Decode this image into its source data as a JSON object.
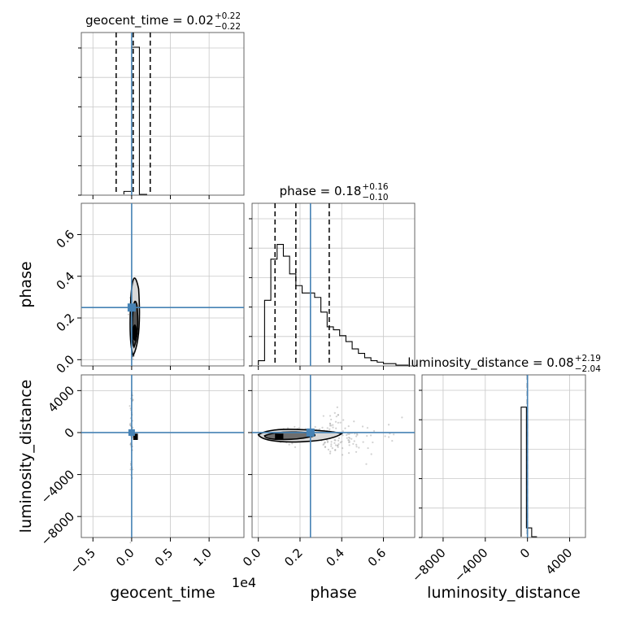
{
  "chart_data": {
    "type": "corner",
    "colors": {
      "truth": "#4682b4",
      "contour": "#000000",
      "grid": "#c8c8c8",
      "frame": "#555555",
      "scatter": "#9a9a9a"
    },
    "parameters": [
      {
        "name": "geocent_time",
        "xlabel": "geocent_time",
        "axis_offset": "1e4",
        "range": [
          -0.65,
          1.45
        ],
        "ticks": [
          -0.5,
          0.0,
          0.5,
          1.0
        ],
        "tick_labels": [
          "−0.5",
          "0.0",
          "0.5",
          "1.0"
        ],
        "truth": 0.0,
        "title": {
          "prefix": "geocent_time = ",
          "median": "0.02",
          "upper": "+0.22",
          "lower": "−0.22"
        },
        "quantiles": [
          -0.2,
          0.02,
          0.24
        ],
        "hist": {
          "edges": [
            -0.1,
            0.0,
            0.1,
            0.2
          ],
          "counts": [
            0.02,
            1.0,
            0.0
          ]
        }
      },
      {
        "name": "phase",
        "xlabel": "phase",
        "range": [
          -0.03,
          0.75
        ],
        "ticks": [
          0.0,
          0.2,
          0.4,
          0.6
        ],
        "tick_labels": [
          "0.0",
          "0.2",
          "0.4",
          "0.6"
        ],
        "truth": 0.25,
        "title": {
          "prefix": "phase = ",
          "median": "0.18",
          "upper": "+0.16",
          "lower": "−0.10"
        },
        "quantiles": [
          0.08,
          0.18,
          0.34
        ],
        "hist": {
          "edges": [
            0.0,
            0.03,
            0.06,
            0.09,
            0.12,
            0.15,
            0.18,
            0.21,
            0.24,
            0.27,
            0.3,
            0.33,
            0.36,
            0.39,
            0.42,
            0.45,
            0.48,
            0.51,
            0.54,
            0.57,
            0.6,
            0.63,
            0.66,
            0.69,
            0.72
          ],
          "counts": [
            0.03,
            0.44,
            0.72,
            0.82,
            0.74,
            0.62,
            0.54,
            0.49,
            0.49,
            0.46,
            0.36,
            0.26,
            0.24,
            0.2,
            0.16,
            0.11,
            0.08,
            0.05,
            0.03,
            0.02,
            0.01,
            0.01,
            0.0,
            0.0
          ]
        }
      },
      {
        "name": "luminosity_distance",
        "xlabel": "luminosity_distance",
        "range": [
          -10000,
          5500
        ],
        "ticks": [
          -8000,
          -4000,
          0,
          4000
        ],
        "tick_labels": [
          "−8000",
          "−4000",
          "0",
          "4000"
        ],
        "truth": 0,
        "title": {
          "prefix": "luminosity_distance = ",
          "median": "0.08",
          "upper": "+2.19",
          "lower": "−2.04"
        },
        "quantiles": [
          -2.0,
          0.08,
          2.3
        ],
        "hist": {
          "edges": [
            -600,
            -100,
            400,
            900
          ],
          "counts": [
            0.88,
            0.06,
            0.0
          ]
        }
      }
    ],
    "histogram_ticks": [
      0,
      0.2,
      0.4,
      0.6,
      0.8,
      1.0
    ],
    "grid": true
  }
}
